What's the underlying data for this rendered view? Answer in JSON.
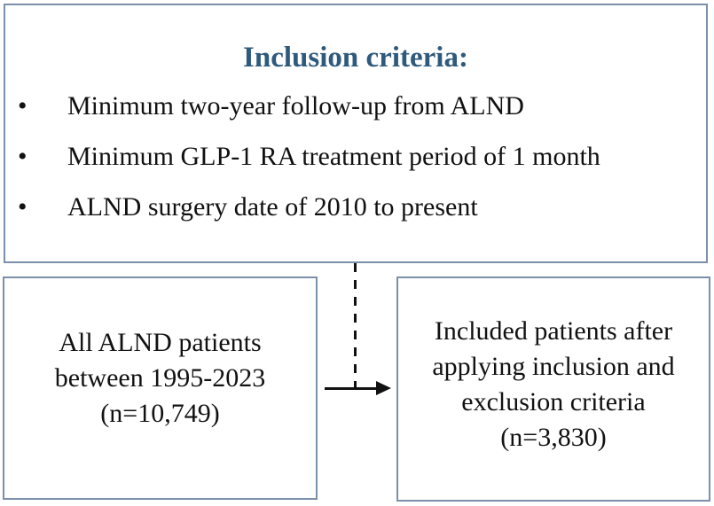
{
  "diagram": {
    "inclusion_box": {
      "title": "Inclusion criteria:",
      "bullet_glyph": "•",
      "bullets": [
        "Minimum two-year follow-up from ALND",
        "Minimum GLP-1 RA treatment period of 1 month",
        "ALND surgery date of 2010 to present"
      ]
    },
    "source_box": {
      "lines": [
        "All ALND patients",
        "between 1995-2023",
        "(n=10,749)"
      ]
    },
    "result_box": {
      "lines": [
        "Included patients after",
        "applying inclusion and",
        "exclusion criteria",
        "(n=3,830)"
      ]
    }
  },
  "colors": {
    "title_text": "#2e5a7d",
    "box_border": "#7b90ab",
    "body_text": "#111111",
    "connector": "#111111",
    "background": "#ffffff"
  }
}
